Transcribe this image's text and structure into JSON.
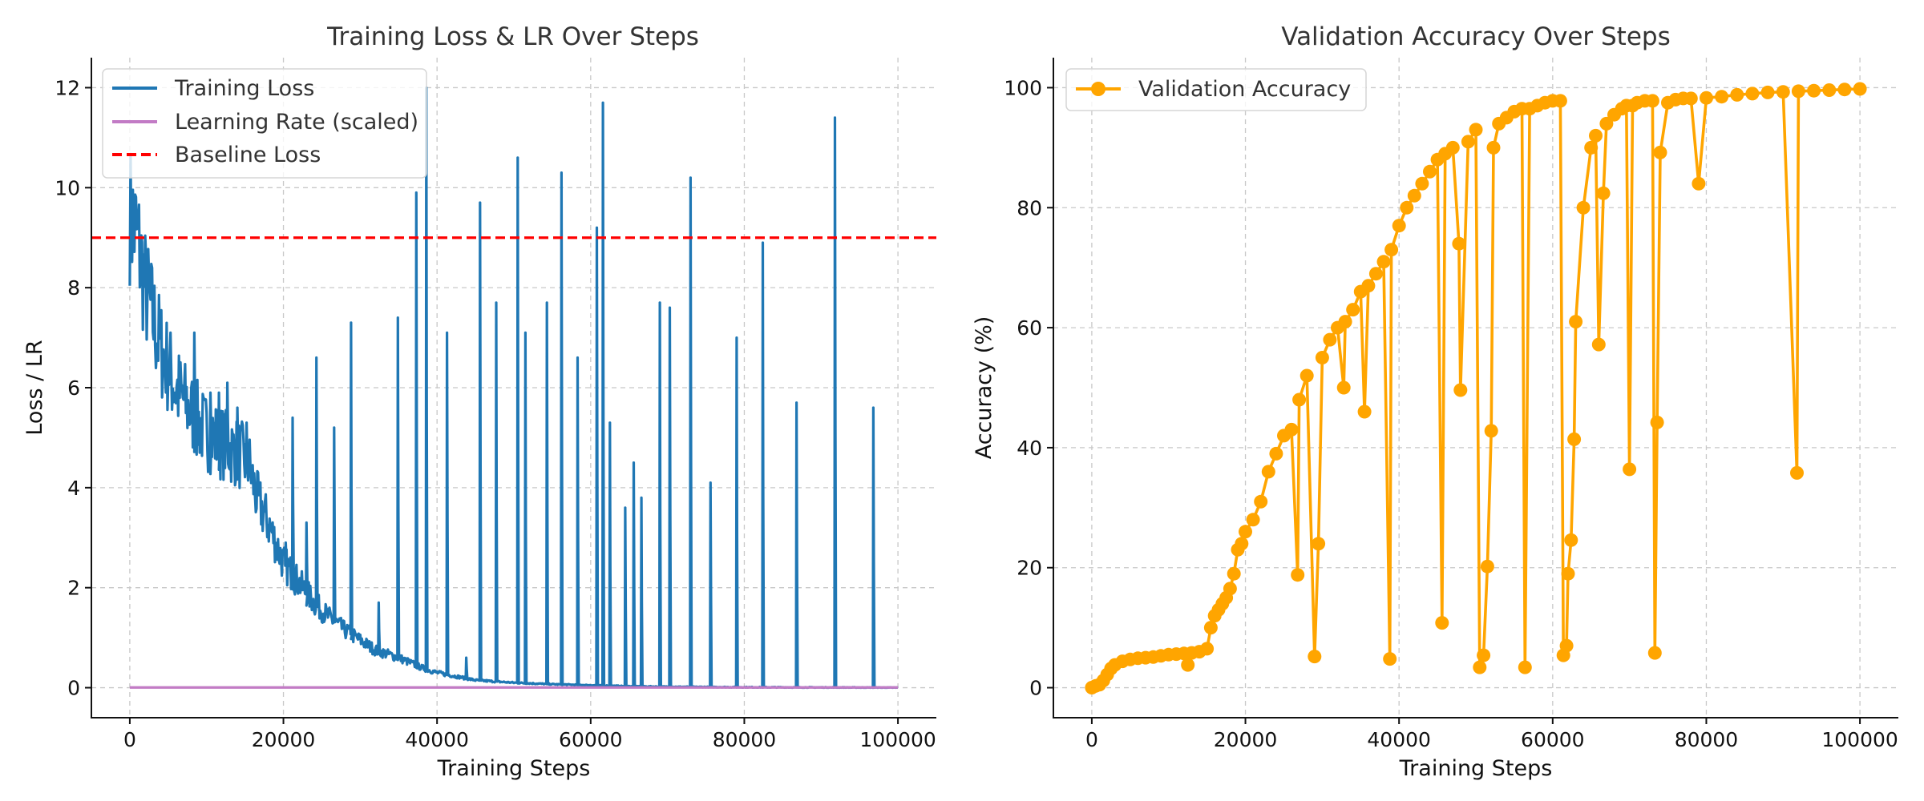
{
  "chart_data": [
    {
      "type": "line",
      "title": "Training Loss & LR Over Steps",
      "xlabel": "Training Steps",
      "ylabel": "Loss / LR",
      "xlim": [
        -5000,
        105000
      ],
      "ylim": [
        -0.6,
        12.6
      ],
      "xticks": [
        0,
        20000,
        40000,
        60000,
        80000,
        100000
      ],
      "yticks": [
        0,
        2,
        4,
        6,
        8,
        10,
        12
      ],
      "grid": true,
      "legend_position": "top-left",
      "base_curve": {
        "x": [
          0,
          1000,
          2000,
          4000,
          6000,
          8000,
          10000,
          12000,
          14000,
          15500,
          16500,
          18000,
          20000,
          22000,
          24000,
          26000,
          28000,
          30000,
          32000,
          35000,
          38000,
          40000,
          45000,
          50000,
          55000,
          60000,
          65000,
          70000,
          80000,
          90000,
          100000
        ],
        "y": [
          9.5,
          9.0,
          8.0,
          6.8,
          6.0,
          5.5,
          5.1,
          4.9,
          4.7,
          4.5,
          3.8,
          3.3,
          2.5,
          2.1,
          1.7,
          1.4,
          1.15,
          0.95,
          0.75,
          0.6,
          0.4,
          0.3,
          0.15,
          0.1,
          0.07,
          0.05,
          0.03,
          0.02,
          0.01,
          0.005,
          0.0
        ]
      },
      "spikes": [
        {
          "x": 8400,
          "y": 7.1
        },
        {
          "x": 10500,
          "y": 5.9
        },
        {
          "x": 11600,
          "y": 5.9
        },
        {
          "x": 12700,
          "y": 6.1
        },
        {
          "x": 14000,
          "y": 5.6
        },
        {
          "x": 15200,
          "y": 5.3
        },
        {
          "x": 20300,
          "y": 2.9
        },
        {
          "x": 21200,
          "y": 5.4
        },
        {
          "x": 23000,
          "y": 3.3
        },
        {
          "x": 24300,
          "y": 6.6
        },
        {
          "x": 26600,
          "y": 5.2
        },
        {
          "x": 28800,
          "y": 7.3
        },
        {
          "x": 32400,
          "y": 1.7
        },
        {
          "x": 34900,
          "y": 7.4
        },
        {
          "x": 37300,
          "y": 9.9
        },
        {
          "x": 38600,
          "y": 12.0
        },
        {
          "x": 41300,
          "y": 7.1
        },
        {
          "x": 43800,
          "y": 0.6
        },
        {
          "x": 45600,
          "y": 9.7
        },
        {
          "x": 47700,
          "y": 7.7
        },
        {
          "x": 50500,
          "y": 10.6
        },
        {
          "x": 51500,
          "y": 7.1
        },
        {
          "x": 54300,
          "y": 7.7
        },
        {
          "x": 56200,
          "y": 10.3
        },
        {
          "x": 58300,
          "y": 6.6
        },
        {
          "x": 60800,
          "y": 9.2
        },
        {
          "x": 61600,
          "y": 11.7
        },
        {
          "x": 62500,
          "y": 5.3
        },
        {
          "x": 64500,
          "y": 3.6
        },
        {
          "x": 65600,
          "y": 4.5
        },
        {
          "x": 66600,
          "y": 3.8
        },
        {
          "x": 69000,
          "y": 7.7
        },
        {
          "x": 70300,
          "y": 7.6
        },
        {
          "x": 73000,
          "y": 10.2
        },
        {
          "x": 75600,
          "y": 4.1
        },
        {
          "x": 79000,
          "y": 7.0
        },
        {
          "x": 82400,
          "y": 8.9
        },
        {
          "x": 86800,
          "y": 5.7
        },
        {
          "x": 91800,
          "y": 11.4
        },
        {
          "x": 96800,
          "y": 5.6
        }
      ],
      "series": [
        {
          "name": "Training Loss",
          "color": "#1f77b4",
          "style": "solid"
        },
        {
          "name": "Learning Rate (scaled)",
          "color": "#c27bc5",
          "style": "solid",
          "x": [
            0,
            100000
          ],
          "y": [
            0.005,
            0.005
          ]
        },
        {
          "name": "Baseline Loss",
          "color": "#ff0000",
          "style": "dashed",
          "y_constant": 9.0
        }
      ]
    },
    {
      "type": "line",
      "title": "Validation Accuracy Over Steps",
      "xlabel": "Training Steps",
      "ylabel": "Accuracy (%)",
      "xlim": [
        -5000,
        105000
      ],
      "ylim": [
        -5,
        105
      ],
      "xticks": [
        0,
        20000,
        40000,
        60000,
        80000,
        100000
      ],
      "yticks": [
        0,
        20,
        40,
        60,
        80,
        100
      ],
      "grid": true,
      "legend_position": "top-left",
      "series": [
        {
          "name": "Validation Accuracy",
          "color": "#ffa500",
          "marker": "circle",
          "x": [
            0,
            500,
            1000,
            1500,
            2000,
            2500,
            3000,
            4000,
            5000,
            6000,
            7000,
            8000,
            9000,
            10000,
            11000,
            12000,
            12500,
            13000,
            14000,
            15000,
            15500,
            16000,
            16500,
            17000,
            17500,
            18000,
            18500,
            19000,
            19500,
            20000,
            21000,
            22000,
            23000,
            24000,
            25000,
            26000,
            26800,
            27000,
            28000,
            29000,
            29500,
            30000,
            31000,
            32000,
            32800,
            33000,
            34000,
            35000,
            35500,
            36000,
            37000,
            38000,
            38800,
            39000,
            40000,
            41000,
            42000,
            43000,
            44000,
            45000,
            45600,
            46000,
            47000,
            47800,
            48000,
            49000,
            50000,
            50500,
            51000,
            51500,
            52000,
            52300,
            53000,
            54000,
            55000,
            56000,
            56400,
            57000,
            58000,
            59000,
            60000,
            61000,
            61400,
            61800,
            62000,
            62400,
            62800,
            63000,
            64000,
            65000,
            65600,
            66000,
            66600,
            67000,
            68000,
            69000,
            69600,
            70000,
            70400,
            71000,
            72000,
            73000,
            73300,
            73600,
            74000,
            75000,
            76000,
            77000,
            78000,
            79000,
            80000,
            82000,
            84000,
            86000,
            88000,
            90000,
            91800,
            92000,
            94000,
            96000,
            98000,
            100000
          ],
          "y": [
            0,
            0.3,
            0.5,
            1.2,
            2.2,
            3.2,
            3.8,
            4.4,
            4.7,
            4.9,
            5.0,
            5.1,
            5.3,
            5.5,
            5.6,
            5.7,
            3.8,
            5.8,
            6.0,
            6.5,
            10,
            12,
            13,
            14,
            15,
            16.5,
            19,
            23,
            24,
            26,
            28,
            31,
            36,
            39,
            42,
            43,
            18.8,
            48,
            52,
            5.2,
            24,
            55,
            58,
            60,
            50,
            61,
            63,
            66,
            46,
            67,
            69,
            71,
            4.8,
            73,
            77,
            80,
            82,
            84,
            86,
            88,
            10.8,
            89,
            90,
            74,
            49.6,
            91,
            93,
            3.4,
            5.4,
            20.2,
            42.8,
            90,
            94,
            95,
            96,
            96.5,
            3.4,
            96.5,
            97,
            97.5,
            97.8,
            97.8,
            5.4,
            7,
            19,
            24.6,
            41.4,
            61,
            80,
            90,
            92,
            57.2,
            82.4,
            94,
            95.5,
            96.5,
            97,
            36.4,
            97,
            97.5,
            97.8,
            97.8,
            5.8,
            44.2,
            89.2,
            97.5,
            98,
            98.2,
            98.2,
            84,
            98.3,
            98.5,
            98.8,
            99.0,
            99.2,
            99.3,
            35.8,
            99.4,
            99.5,
            99.6,
            99.7,
            99.8
          ]
        }
      ]
    }
  ]
}
